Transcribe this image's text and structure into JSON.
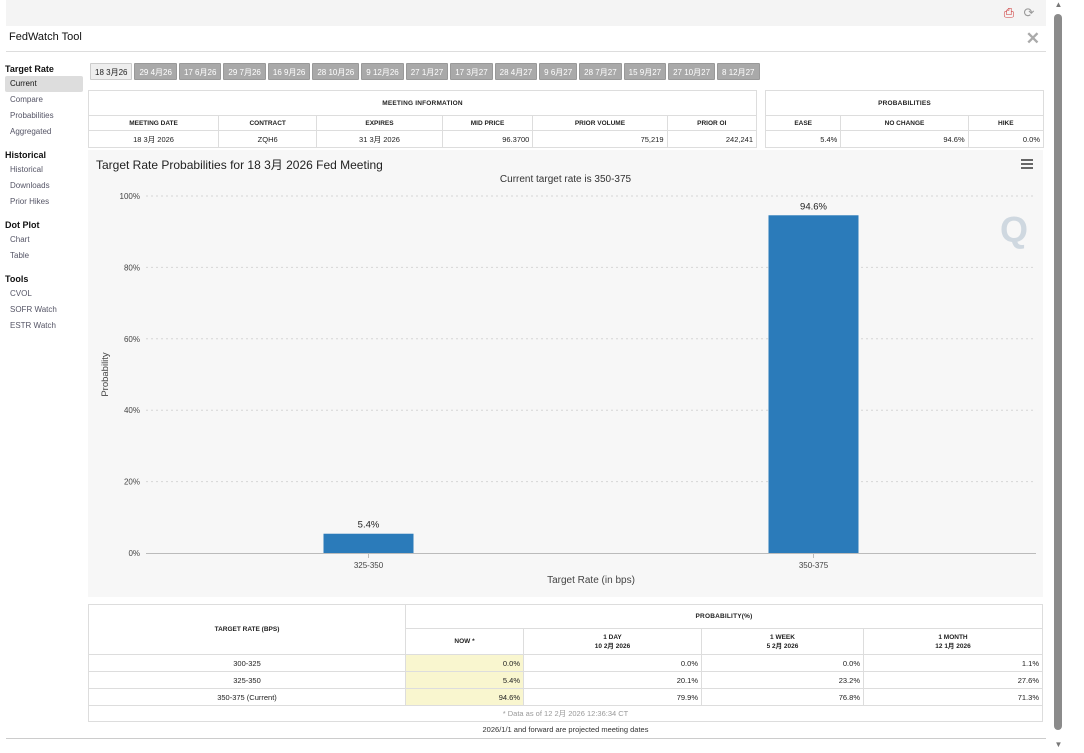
{
  "window": {
    "title": "FedWatch Tool"
  },
  "sidebar": {
    "sections": [
      {
        "title": "Target Rate",
        "items": [
          "Current",
          "Compare",
          "Probabilities",
          "Aggregated"
        ]
      },
      {
        "title": "Historical",
        "items": [
          "Historical",
          "Downloads",
          "Prior Hikes"
        ]
      },
      {
        "title": "Dot Plot",
        "items": [
          "Chart",
          "Table"
        ]
      },
      {
        "title": "Tools",
        "items": [
          "CVOL",
          "SOFR Watch",
          "ESTR Watch"
        ]
      }
    ],
    "active": "Current"
  },
  "meeting_tabs": [
    "18 3月26",
    "29 4月26",
    "17 6月26",
    "29 7月26",
    "16 9月26",
    "28 10月26",
    "9 12月26",
    "27 1月27",
    "17 3月27",
    "28 4月27",
    "9 6月27",
    "28 7月27",
    "15 9月27",
    "27 10月27",
    "8 12月27"
  ],
  "meeting_info": {
    "group_label": "MEETING INFORMATION",
    "headers": [
      "MEETING DATE",
      "CONTRACT",
      "EXPIRES",
      "MID PRICE",
      "PRIOR VOLUME",
      "PRIOR OI"
    ],
    "row": [
      "18 3月 2026",
      "ZQH6",
      "31 3月 2026",
      "96.3700",
      "75,219",
      "242,241"
    ]
  },
  "probabilities": {
    "group_label": "PROBABILITIES",
    "headers": [
      "EASE",
      "NO CHANGE",
      "HIKE"
    ],
    "row": [
      "5.4%",
      "94.6%",
      "0.0%"
    ]
  },
  "chart_data": {
    "type": "bar",
    "title": "Target Rate Probabilities for 18 3月 2026 Fed Meeting",
    "subtitle": "Current target rate is 350-375",
    "xlabel": "Target Rate (in bps)",
    "ylabel": "Probability",
    "categories": [
      "325-350",
      "350-375"
    ],
    "values": [
      5.4,
      94.6
    ],
    "value_labels": [
      "5.4%",
      "94.6%"
    ],
    "ylim": [
      0,
      100
    ],
    "yticks": [
      "0%",
      "20%",
      "40%",
      "60%",
      "80%",
      "100%"
    ],
    "bar_color": "#2b7bba",
    "grid": true
  },
  "rate_table": {
    "rate_header": "TARGET RATE (BPS)",
    "group_label": "PROBABILITY(%)",
    "columns": [
      {
        "line1": "NOW *",
        "line2": ""
      },
      {
        "line1": "1 DAY",
        "line2": "10 2月 2026"
      },
      {
        "line1": "1 WEEK",
        "line2": "5 2月 2026"
      },
      {
        "line1": "1 MONTH",
        "line2": "12 1月 2026"
      }
    ],
    "rows": [
      [
        "300-325",
        "0.0%",
        "0.0%",
        "0.0%",
        "1.1%"
      ],
      [
        "325-350",
        "5.4%",
        "20.1%",
        "23.2%",
        "27.6%"
      ],
      [
        "350-375 (Current)",
        "94.6%",
        "79.9%",
        "76.8%",
        "71.3%"
      ]
    ],
    "as_of": "* Data as of 12 2月 2026 12:36:34 CT",
    "footnote": "2026/1/1 and forward are projected meeting dates"
  }
}
